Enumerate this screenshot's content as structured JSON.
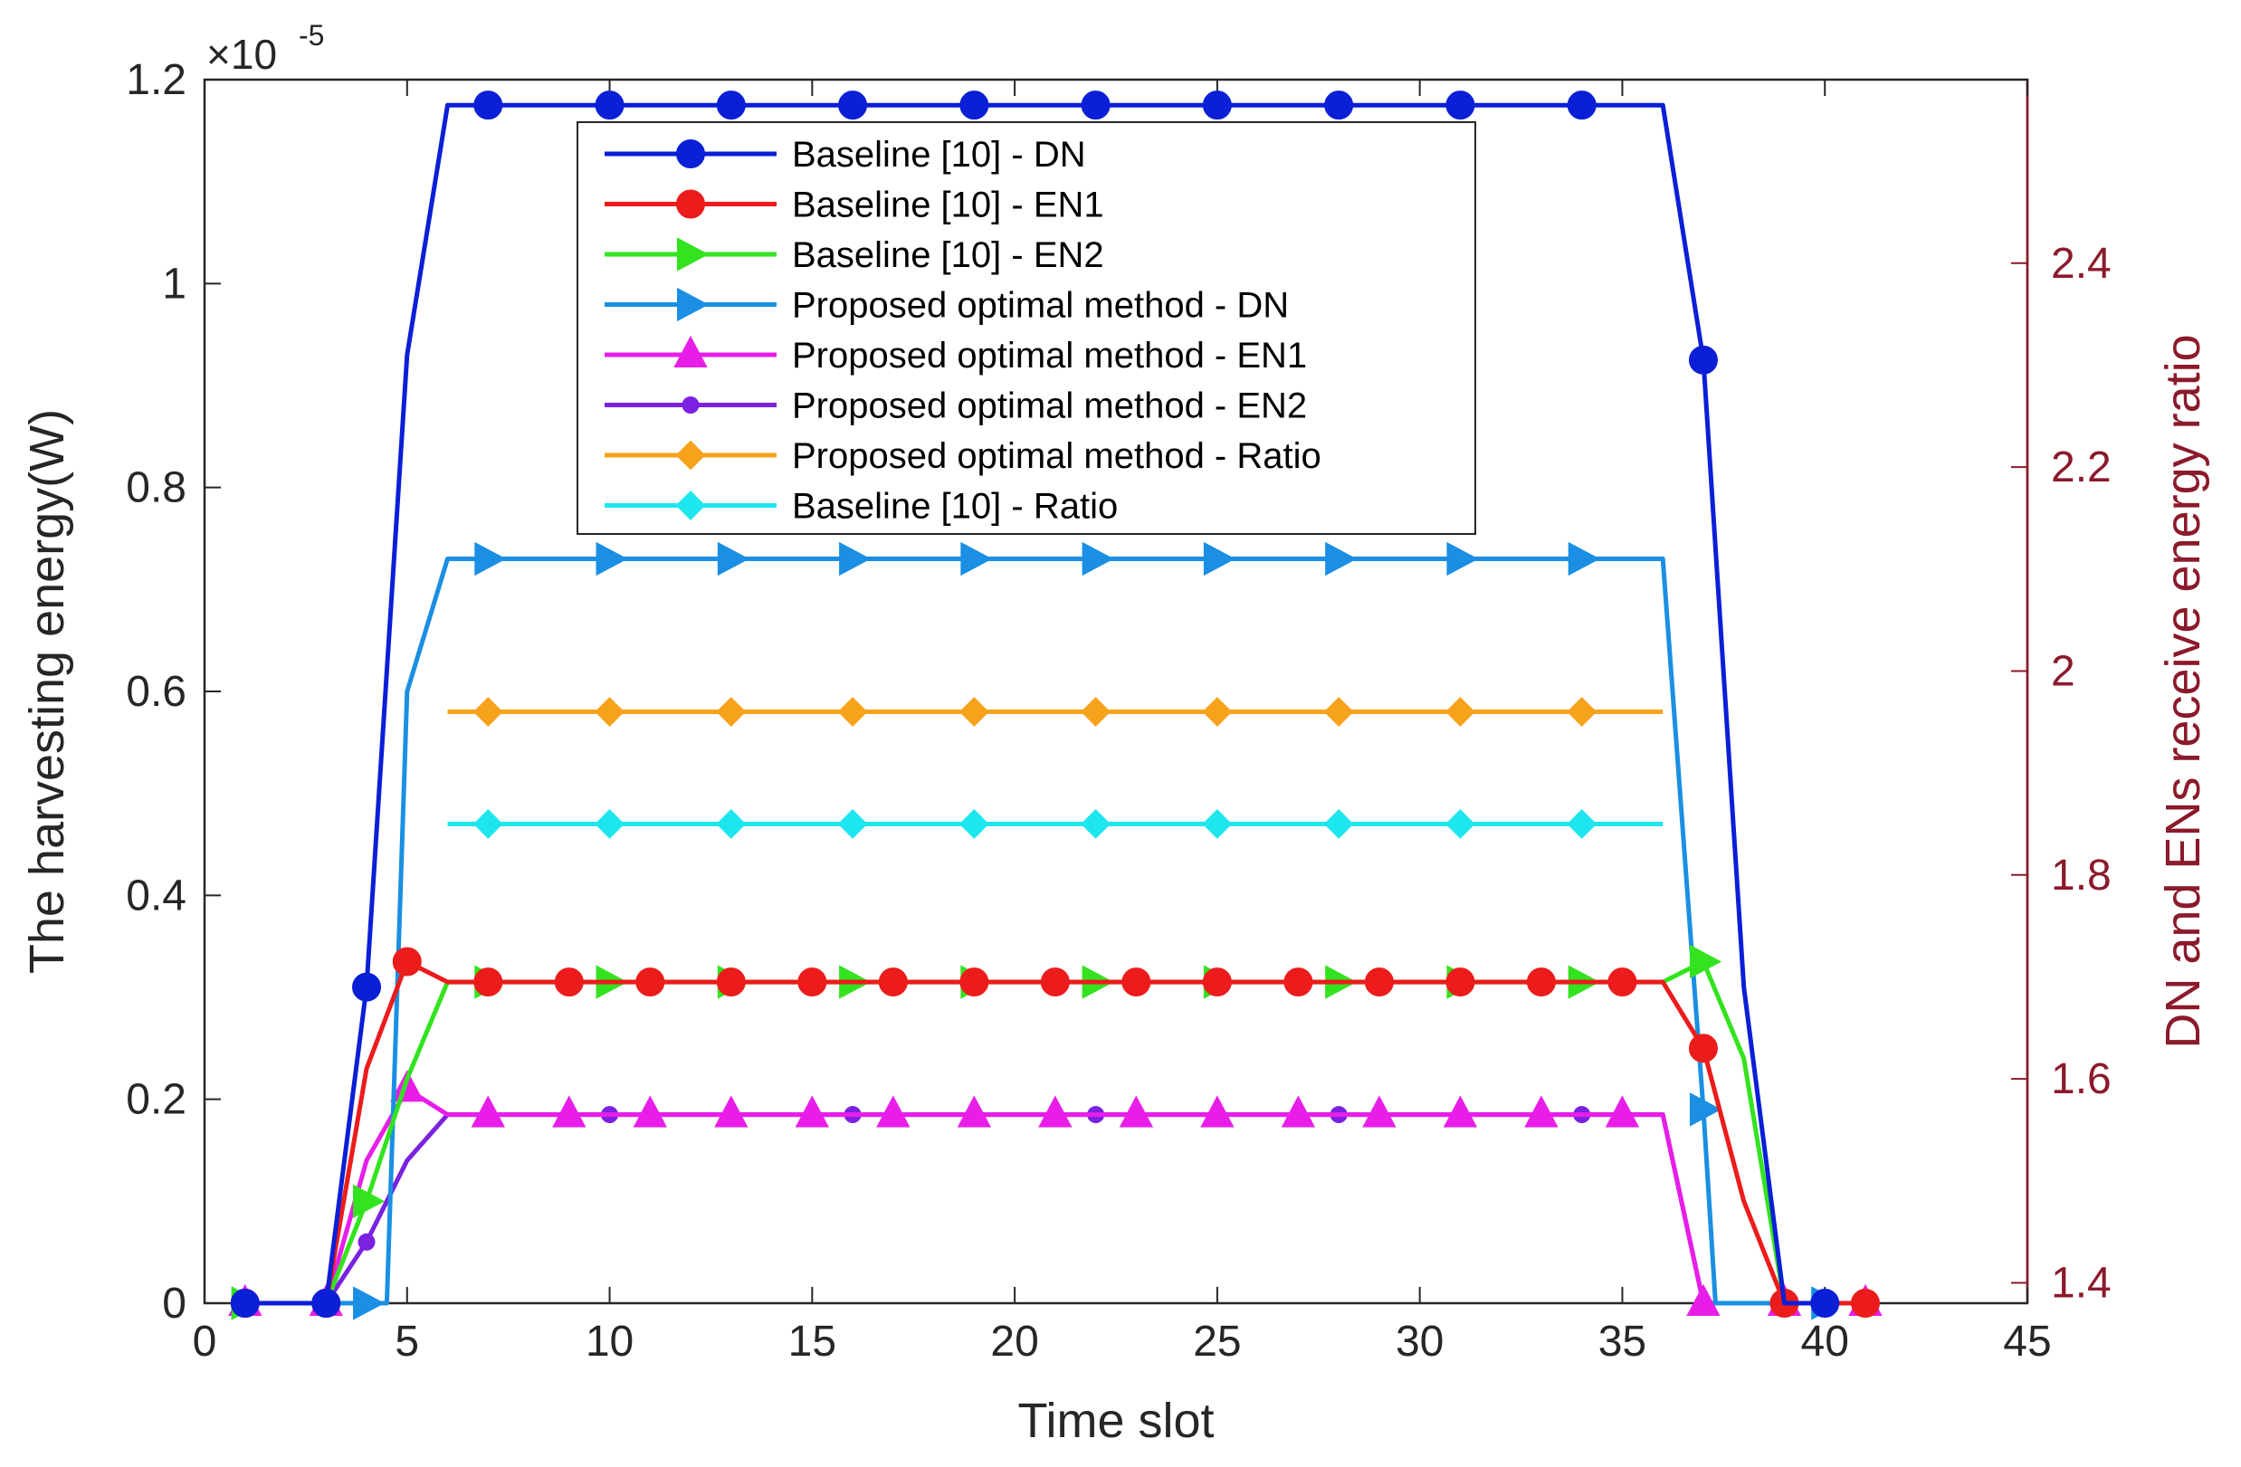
{
  "chart_data": {
    "type": "line",
    "xlabel": "Time slot",
    "ylabel": "The harvesting energy(W)",
    "y2label": "DN and ENs receive energy ratio",
    "xlim": [
      0,
      45
    ],
    "ylim": [
      0,
      1.2
    ],
    "y2lim": [
      1.38,
      2.58
    ],
    "x_ticks": [
      "0",
      "5",
      "10",
      "15",
      "20",
      "25",
      "30",
      "35",
      "40",
      "45"
    ],
    "x_tick_values": [
      0,
      5,
      10,
      15,
      20,
      25,
      30,
      35,
      40,
      45
    ],
    "y_ticks": [
      "0",
      "0.2",
      "0.4",
      "0.6",
      "0.8",
      "1",
      "1.2"
    ],
    "y_tick_values": [
      0,
      0.2,
      0.4,
      0.6,
      0.8,
      1,
      1.2
    ],
    "y2_ticks": [
      "1.4",
      "1.6",
      "1.8",
      "2",
      "2.2",
      "2.4"
    ],
    "y2_tick_values": [
      1.4,
      1.6,
      1.8,
      2.0,
      2.2,
      2.4
    ],
    "y_multiplier_base": "×10",
    "y_multiplier_exp": "-5",
    "grid": false,
    "legend_position": "top-center",
    "series": [
      {
        "name": "Baseline [10] - DN",
        "color": "#0a1fd6",
        "marker": "circle",
        "axis": "left",
        "x": [
          1,
          3,
          4,
          5,
          6,
          7,
          10,
          13,
          16,
          19,
          22,
          25,
          28,
          31,
          34,
          36,
          37,
          38,
          39,
          40
        ],
        "values": [
          0,
          0,
          0.31,
          0.93,
          1.175,
          1.175,
          1.175,
          1.175,
          1.175,
          1.175,
          1.175,
          1.175,
          1.175,
          1.175,
          1.175,
          1.175,
          0.925,
          0.31,
          0,
          0
        ],
        "marker_x": [
          1,
          3,
          4,
          7,
          10,
          13,
          16,
          19,
          22,
          25,
          28,
          31,
          34,
          37,
          40
        ]
      },
      {
        "name": "Baseline [10] - EN1",
        "color": "#ec1c1c",
        "marker": "circle",
        "axis": "left",
        "x": [
          1,
          3,
          4,
          5,
          6,
          7,
          9,
          11,
          13,
          15,
          17,
          19,
          21,
          23,
          25,
          27,
          29,
          31,
          33,
          35,
          36,
          37,
          38,
          39,
          41
        ],
        "values": [
          0,
          0,
          0.23,
          0.335,
          0.315,
          0.315,
          0.315,
          0.315,
          0.315,
          0.315,
          0.315,
          0.315,
          0.315,
          0.315,
          0.315,
          0.315,
          0.315,
          0.315,
          0.315,
          0.315,
          0.315,
          0.25,
          0.1,
          0,
          0
        ],
        "marker_x": [
          1,
          3,
          5,
          7,
          9,
          11,
          13,
          15,
          17,
          19,
          21,
          23,
          25,
          27,
          29,
          31,
          33,
          35,
          37,
          39,
          41
        ]
      },
      {
        "name": "Baseline [10] - EN2",
        "color": "#33e31f",
        "marker": "triangle-right",
        "axis": "left",
        "x": [
          1,
          3,
          4,
          5,
          6,
          7,
          10,
          13,
          16,
          19,
          22,
          25,
          28,
          31,
          34,
          36,
          37,
          38,
          39
        ],
        "values": [
          0,
          0,
          0.1,
          0.22,
          0.315,
          0.315,
          0.315,
          0.315,
          0.315,
          0.315,
          0.315,
          0.315,
          0.315,
          0.315,
          0.315,
          0.315,
          0.335,
          0.24,
          0
        ],
        "marker_x": [
          1,
          4,
          7,
          10,
          13,
          16,
          19,
          22,
          25,
          28,
          31,
          34,
          37
        ]
      },
      {
        "name": "Proposed optimal method - DN",
        "color": "#1a8fe3",
        "marker": "triangle-right",
        "axis": "left",
        "x": [
          1,
          3,
          4,
          4.5,
          5,
          6,
          7,
          10,
          13,
          16,
          19,
          22,
          25,
          28,
          31,
          34,
          36,
          37,
          37.3,
          40
        ],
        "values": [
          0,
          0,
          0,
          0,
          0.6,
          0.73,
          0.73,
          0.73,
          0.73,
          0.73,
          0.73,
          0.73,
          0.73,
          0.73,
          0.73,
          0.73,
          0.73,
          0.19,
          0,
          0
        ],
        "marker_x": [
          1,
          4,
          7,
          10,
          13,
          16,
          19,
          22,
          25,
          28,
          31,
          34,
          37,
          40
        ]
      },
      {
        "name": "Proposed optimal method - EN1",
        "color": "#e81ee8",
        "marker": "triangle-up",
        "axis": "left",
        "x": [
          1,
          3,
          4,
          5,
          6,
          7,
          9,
          11,
          13,
          15,
          17,
          19,
          21,
          23,
          25,
          27,
          29,
          31,
          33,
          35,
          36,
          37,
          39,
          41
        ],
        "values": [
          0,
          0,
          0.14,
          0.21,
          0.185,
          0.185,
          0.185,
          0.185,
          0.185,
          0.185,
          0.185,
          0.185,
          0.185,
          0.185,
          0.185,
          0.185,
          0.185,
          0.185,
          0.185,
          0.185,
          0.185,
          0,
          0,
          0
        ],
        "marker_x": [
          1,
          3,
          5,
          7,
          9,
          11,
          13,
          15,
          17,
          19,
          21,
          23,
          25,
          27,
          29,
          31,
          33,
          35,
          37,
          39,
          41
        ]
      },
      {
        "name": "Proposed optimal method - EN2",
        "color": "#7a22e0",
        "marker": "dot",
        "axis": "left",
        "x": [
          1,
          3,
          4,
          5,
          6,
          7,
          10,
          13,
          16,
          19,
          22,
          25,
          28,
          31,
          34,
          36,
          37
        ],
        "values": [
          0,
          0,
          0.06,
          0.14,
          0.185,
          0.185,
          0.185,
          0.185,
          0.185,
          0.185,
          0.185,
          0.185,
          0.185,
          0.185,
          0.185,
          0.185,
          0
        ],
        "marker_x": [
          1,
          4,
          7,
          10,
          13,
          16,
          19,
          22,
          25,
          28,
          31,
          34,
          37
        ]
      },
      {
        "name": "Proposed optimal method - Ratio",
        "color": "#f7a21b",
        "marker": "diamond",
        "axis": "right",
        "x": [
          6,
          7,
          10,
          13,
          16,
          19,
          22,
          25,
          28,
          31,
          34,
          36
        ],
        "values": [
          1.96,
          1.96,
          1.96,
          1.96,
          1.96,
          1.96,
          1.96,
          1.96,
          1.96,
          1.96,
          1.96,
          1.96
        ],
        "marker_x": [
          7,
          10,
          13,
          16,
          19,
          22,
          25,
          28,
          31,
          34
        ]
      },
      {
        "name": "Baseline [10] - Ratio",
        "color": "#1ee6ee",
        "marker": "diamond",
        "axis": "right",
        "x": [
          6,
          7,
          10,
          13,
          16,
          19,
          22,
          25,
          28,
          31,
          34,
          36
        ],
        "values": [
          1.85,
          1.85,
          1.85,
          1.85,
          1.85,
          1.85,
          1.85,
          1.85,
          1.85,
          1.85,
          1.85,
          1.85
        ],
        "marker_x": [
          7,
          10,
          13,
          16,
          19,
          22,
          25,
          28,
          31,
          34
        ]
      }
    ]
  }
}
